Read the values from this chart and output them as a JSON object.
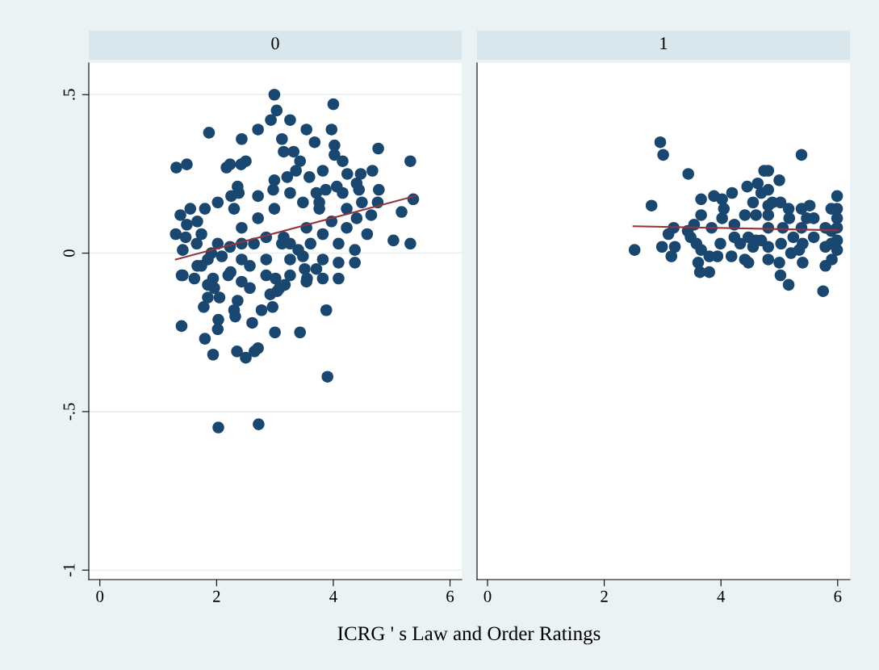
{
  "chart_data": [
    {
      "type": "scatter",
      "title": "0",
      "xlabel": "ICRG ' s Law and Order Ratings",
      "xlim": [
        -0.19,
        6.2
      ],
      "ylim": [
        -1.03,
        0.6
      ],
      "xticks": [
        0,
        2,
        4,
        6
      ],
      "yticks": [
        {
          "value": 0.5,
          "label": ".5"
        },
        0,
        {
          "value": -0.5,
          "label": "-.5"
        },
        -1
      ],
      "grid": "y",
      "marker": "circle",
      "series": [
        {
          "color": "#1a476f",
          "x": [
            1.31,
            1.49,
            1.87,
            2.03,
            2.72,
            2.99,
            3.03,
            2.93,
            4.0,
            3.97,
            3.9,
            4.77,
            5.32,
            5.37,
            5.32,
            5.03,
            5.17,
            4.76,
            4.49,
            4.4,
            4.24,
            3.87,
            3.76,
            3.59,
            3.36,
            2.97,
            2.71,
            2.42,
            2.23,
            2.17,
            2.25,
            1.38,
            1.3,
            1.42,
            1.49,
            1.4,
            1.4,
            1.8,
            2.35,
            2.5,
            2.03,
            2.02,
            1.78,
            2.71,
            2.65,
            1.42,
            1.62,
            1.85,
            2.05,
            2.3,
            2.96,
            3.08,
            3.01,
            3.04,
            3.51,
            3.55,
            3.88,
            3.43,
            3.0,
            3.17,
            2.57,
            2.24,
            1.96,
            2.2,
            2.09,
            1.91,
            2.43,
            2.85,
            3.26,
            3.15,
            3.54,
            3.82,
            4.09,
            4.37,
            4.58,
            4.4,
            4.23,
            4.16,
            4.44,
            4.02,
            4.16,
            4.02,
            3.68,
            3.54,
            3.26,
            3.12,
            2.71,
            2.43,
            2.5,
            2.36,
            2.02,
            1.8,
            1.67,
            1.74,
            2.3,
            2.43,
            2.71,
            2.99,
            3.26,
            3.48,
            3.76,
            3.97,
            3.61,
            3.4,
            3.12,
            2.85,
            2.64,
            2.43,
            2.23,
            2.02,
            1.85,
            1.67,
            1.94,
            2.57,
            2.85,
            3.26,
            3.82,
            4.09,
            4.37,
            3.54,
            3.82,
            4.09,
            1.47,
            1.66,
            1.74,
            1.85,
            2.43,
            2.92,
            3.26,
            3.48,
            3.71,
            2.61,
            2.77,
            2.32,
            2.36,
            1.94,
            1.55,
            2.38,
            2.99,
            3.21,
            3.32,
            3.15,
            3.43,
            3.82,
            4.06,
            3.71,
            4.65,
            4.23,
            4.78,
            4.47,
            4.67
          ],
          "values": [
            0.27,
            0.28,
            0.38,
            -0.55,
            -0.54,
            0.5,
            0.45,
            0.42,
            0.47,
            0.39,
            -0.39,
            0.33,
            0.29,
            0.17,
            0.03,
            0.04,
            0.13,
            0.16,
            0.16,
            0.22,
            0.25,
            0.2,
            0.16,
            0.24,
            0.26,
            0.2,
            0.18,
            0.28,
            0.28,
            0.27,
            0.18,
            0.12,
            0.06,
            0.01,
            0.09,
            -0.07,
            -0.23,
            -0.27,
            -0.31,
            -0.33,
            -0.21,
            -0.24,
            -0.17,
            -0.3,
            -0.31,
            -0.07,
            -0.08,
            -0.14,
            -0.14,
            -0.18,
            -0.17,
            -0.11,
            -0.08,
            -0.12,
            -0.05,
            -0.08,
            -0.18,
            -0.25,
            -0.25,
            -0.1,
            -0.11,
            -0.06,
            -0.11,
            -0.07,
            -0.01,
            0.0,
            -0.02,
            -0.02,
            0.03,
            0.05,
            0.08,
            0.06,
            0.03,
            0.01,
            0.06,
            0.11,
            0.14,
            0.19,
            0.2,
            0.31,
            0.29,
            0.34,
            0.35,
            0.39,
            0.42,
            0.36,
            0.39,
            0.36,
            0.29,
            0.21,
            0.16,
            0.14,
            0.1,
            0.06,
            0.14,
            0.08,
            0.11,
            0.14,
            0.19,
            0.16,
            0.14,
            0.1,
            0.03,
            0.01,
            0.03,
            0.05,
            0.03,
            0.03,
            0.02,
            0.03,
            -0.02,
            -0.04,
            -0.08,
            -0.04,
            -0.07,
            -0.02,
            -0.02,
            -0.03,
            -0.03,
            -0.09,
            -0.08,
            -0.08,
            0.05,
            0.03,
            -0.04,
            -0.1,
            -0.09,
            -0.13,
            -0.07,
            -0.01,
            -0.05,
            -0.22,
            -0.18,
            -0.2,
            -0.15,
            -0.32,
            0.14,
            0.19,
            0.23,
            0.24,
            0.32,
            0.32,
            0.29,
            0.26,
            0.21,
            0.19,
            0.12,
            0.08,
            0.2,
            0.25,
            0.26
          ]
        },
        {
          "type": "line",
          "color": "#90353b",
          "marker": "none",
          "x": [
            1.3,
            5.4
          ],
          "values": [
            -0.02,
            0.18
          ]
        }
      ]
    },
    {
      "type": "scatter",
      "title": "1",
      "xlim": [
        -0.18,
        6.21
      ],
      "ylim": [
        -1.03,
        0.6
      ],
      "xticks": [
        0,
        2,
        4,
        6
      ],
      "tick_labels": "x",
      "grid": "y",
      "marker": "circle",
      "series": [
        {
          "color": "#1a476f",
          "x": [
            2.52,
            2.96,
            3.01,
            2.81,
            3.44,
            5.38,
            5.75,
            2.99,
            3.1,
            3.19,
            3.15,
            3.21,
            3.43,
            3.48,
            3.54,
            3.66,
            3.66,
            3.58,
            3.66,
            3.61,
            3.64,
            3.8,
            3.8,
            3.88,
            3.84,
            4.02,
            4.05,
            4.02,
            3.99,
            3.94,
            4.19,
            4.18,
            4.23,
            4.23,
            4.33,
            4.41,
            4.45,
            4.41,
            4.47,
            4.47,
            4.55,
            4.6,
            4.63,
            4.69,
            4.74,
            4.81,
            4.81,
            4.81,
            4.81,
            4.81,
            4.81,
            4.81,
            4.6,
            4.55,
            4.69,
            4.88,
            5.0,
            5.02,
            5.0,
            5.02,
            5.16,
            5.03,
            5.16,
            5.17,
            5.06,
            5.2,
            5.24,
            5.38,
            5.52,
            5.47,
            5.38,
            5.4,
            5.4,
            5.59,
            5.59,
            5.34,
            5.79,
            5.79,
            5.79,
            5.9,
            5.89,
            5.99,
            5.99,
            5.99,
            5.99,
            5.99,
            5.99,
            5.89,
            5.89
          ],
          "values": [
            0.01,
            0.35,
            0.31,
            0.15,
            0.25,
            0.31,
            -0.12,
            0.02,
            0.06,
            0.08,
            -0.01,
            0.02,
            0.07,
            0.05,
            0.09,
            0.17,
            0.12,
            0.03,
            0.01,
            -0.03,
            -0.06,
            -0.06,
            -0.01,
            0.18,
            0.08,
            0.17,
            0.14,
            0.11,
            0.03,
            -0.01,
            0.19,
            -0.01,
            0.09,
            0.05,
            0.03,
            0.12,
            0.21,
            -0.02,
            -0.03,
            0.05,
            0.16,
            0.12,
            0.22,
            0.19,
            0.26,
            0.26,
            0.2,
            0.15,
            0.12,
            0.08,
            0.02,
            -0.02,
            0.04,
            0.02,
            0.04,
            0.16,
            0.23,
            0.16,
            -0.03,
            -0.07,
            -0.1,
            0.03,
            0.14,
            0.11,
            0.08,
            0.0,
            0.05,
            0.14,
            0.15,
            0.11,
            0.08,
            0.03,
            -0.03,
            0.11,
            0.05,
            0.01,
            0.08,
            0.02,
            -0.04,
            -0.02,
            0.14,
            0.18,
            0.14,
            0.11,
            0.08,
            0.04,
            0.01,
            0.07,
            0.03
          ]
        },
        {
          "type": "line",
          "color": "#90353b",
          "marker": "none",
          "x": [
            2.5,
            6.0
          ],
          "values": [
            0.085,
            0.072
          ]
        }
      ]
    }
  ]
}
